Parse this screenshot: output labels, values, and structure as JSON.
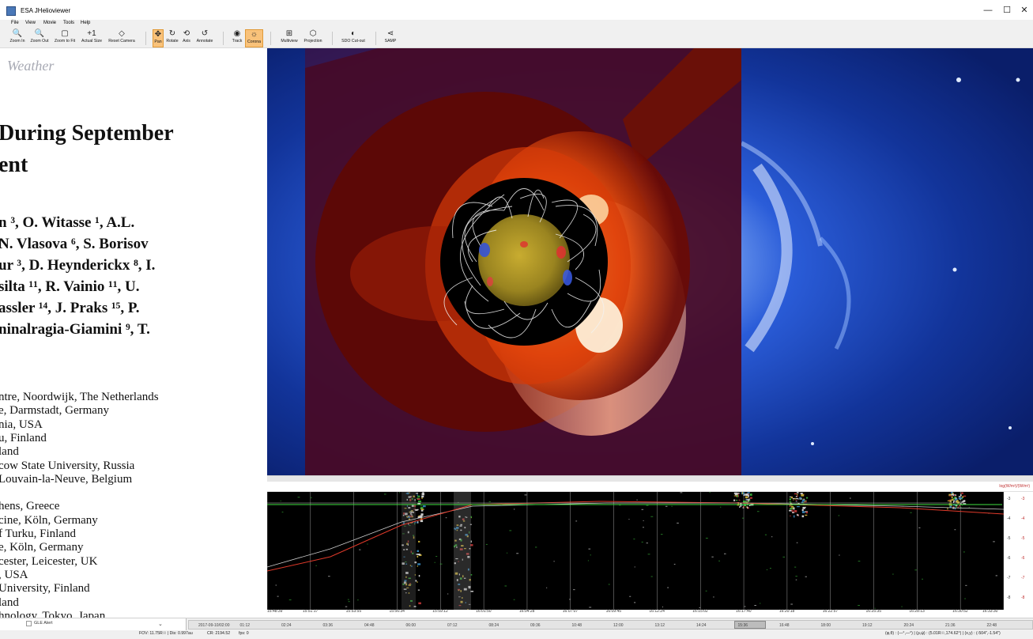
{
  "window": {
    "title": "ESA JHelioviewer",
    "minimize": "—",
    "maximize": "☐",
    "close": "✕"
  },
  "menu": [
    "File",
    "View",
    "Movie",
    "Tools",
    "Help"
  ],
  "toolbar": [
    {
      "label": "Zoom In",
      "icon": "zoom-in-icon",
      "glyph": "🔍",
      "x": 11,
      "w": 22
    },
    {
      "label": "Zoom Out",
      "icon": "zoom-out-icon",
      "glyph": "🔍",
      "x": 35,
      "w": 30
    },
    {
      "label": "Zoom to Fit",
      "icon": "zoom-fit-icon",
      "glyph": "▢",
      "x": 66,
      "w": 32
    },
    {
      "label": "Actual Size",
      "icon": "actual-size-icon",
      "glyph": "+1",
      "x": 99,
      "w": 34
    },
    {
      "label": "Reset Camera",
      "icon": "reset-camera-icon",
      "glyph": "◇",
      "x": 134,
      "w": 40
    },
    {
      "label": "Pan",
      "icon": "pan-icon",
      "glyph": "✥",
      "x": 193,
      "w": 14,
      "active": true
    },
    {
      "label": "Rotate",
      "icon": "rotate-icon",
      "glyph": "↻",
      "x": 208,
      "w": 20
    },
    {
      "label": "Axis",
      "icon": "axis-icon",
      "glyph": "⟲",
      "x": 229,
      "w": 14
    },
    {
      "label": "Annotate",
      "icon": "annotate-icon",
      "glyph": "↺",
      "x": 245,
      "w": 28
    },
    {
      "label": "Track",
      "icon": "track-icon",
      "glyph": "◉",
      "x": 291,
      "w": 18
    },
    {
      "label": "Corona",
      "icon": "corona-icon",
      "glyph": "☼",
      "x": 310,
      "w": 23,
      "active": true
    },
    {
      "label": "Multiview",
      "icon": "multiview-icon",
      "glyph": "⊞",
      "x": 352,
      "w": 28
    },
    {
      "label": "Projection",
      "icon": "projection-icon",
      "glyph": "⬡",
      "x": 381,
      "w": 30
    },
    {
      "label": "SDO Cut-out",
      "icon": "sdo-cutout-icon",
      "glyph": "◐",
      "x": 428,
      "w": 38
    },
    {
      "label": "SAMP",
      "icon": "samp-icon",
      "glyph": "⋖",
      "x": 484,
      "w": 20
    }
  ],
  "document": {
    "journal": "Weather",
    "title_lines": [
      "During September",
      "ent"
    ],
    "author_lines": [
      "n ³, O. Witasse ¹, A.L.",
      "N. Vlasova ⁶, S. Borisov",
      "ur ³, D. Heynderickx ⁸, I.",
      "silta ¹¹, R. Vainio ¹¹, U.",
      "assler ¹⁴, J. Praks ¹⁵, P.",
      "ninalragia-Giamini ⁹, T."
    ],
    "affiliations": [
      "ntre, Noordwijk, The Netherlands",
      "e, Darmstadt, Germany",
      "nia, USA",
      "u, Finland",
      "land",
      "cow State University, Russia",
      " Louvain-la-Neuve, Belgium",
      "",
      "hens, Greece",
      "cine, Köln, Germany",
      "f Turku, Finland",
      "e, Köln, Germany",
      "cester, Leicester, UK",
      ", USA",
      "University, Finland",
      "land",
      "hnology, Tokyo, Japan"
    ]
  },
  "timeline": {
    "unit_label": "log(W/m²)/(W/m²)",
    "x_ticks": [
      "15:48:39",
      "15:51:17",
      "15:53:55",
      "15:56:34",
      "15:59:12",
      "16:01:50",
      "16:04:28",
      "16:07:07",
      "16:09:45",
      "16:12:24",
      "16:15:02",
      "16:17:40",
      "16:20:18",
      "16:22:57",
      "16:25:35",
      "16:28:13",
      "16:30:52",
      "16:33:30"
    ],
    "y_ticks_left": [
      "-3",
      "-4",
      "-5",
      "-6",
      "-7",
      "-8"
    ],
    "y_ticks_right": [
      "-3",
      "-4",
      "-5",
      "-6",
      "-7",
      "-8"
    ],
    "colors": {
      "green": "#40e040",
      "red": "#e03a2a",
      "white": "#cfcfcf"
    }
  },
  "bottom": {
    "layers": [
      "GLE Alert"
    ],
    "time_ticks": [
      "2017-09-10/02:00",
      "01:12",
      "02:24",
      "03:36",
      "04:48",
      "06:00",
      "07:12",
      "08:24",
      "09:36",
      "10:48",
      "12:00",
      "13:12",
      "14:24",
      "15:36",
      "16:48",
      "18:00",
      "19:12",
      "20:24",
      "21:36",
      "22:48"
    ]
  },
  "status": {
    "fov": "FOV: 11.75R☉ | Dis: 0.997au",
    "cr": "CR: 2194.52",
    "fps": "fps: 0",
    "coords": "(φ,θ) : (—°,—°) | (ρ,ψ) : (5.01R☉,174.62°) | (x,y) : (-504″,-1.54″)"
  },
  "viewport_colors": {
    "c3_blue": "#1844b8",
    "c2_red": "#5a0a0a",
    "corona_orange": "#ff7a1a"
  }
}
